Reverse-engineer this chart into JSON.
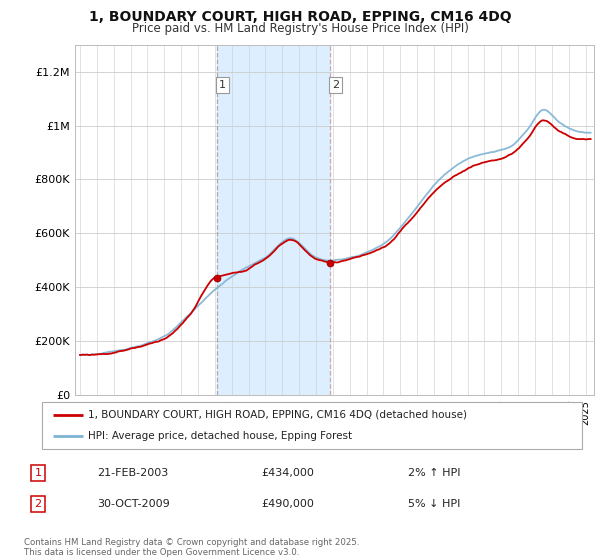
{
  "title": "1, BOUNDARY COURT, HIGH ROAD, EPPING, CM16 4DQ",
  "subtitle": "Price paid vs. HM Land Registry's House Price Index (HPI)",
  "legend_line1": "1, BOUNDARY COURT, HIGH ROAD, EPPING, CM16 4DQ (detached house)",
  "legend_line2": "HPI: Average price, detached house, Epping Forest",
  "transaction1_label": "1",
  "transaction1_date": "21-FEB-2003",
  "transaction1_price": "£434,000",
  "transaction1_hpi": "2% ↑ HPI",
  "transaction2_label": "2",
  "transaction2_date": "30-OCT-2009",
  "transaction2_price": "£490,000",
  "transaction2_hpi": "5% ↓ HPI",
  "footer": "Contains HM Land Registry data © Crown copyright and database right 2025.\nThis data is licensed under the Open Government Licence v3.0.",
  "line_color_red": "#cc0000",
  "line_color_blue": "#7fb3d3",
  "shade_color": "#ddeeff",
  "background_color": "#ffffff",
  "grid_color": "#cccccc",
  "yticks": [
    0,
    200000,
    400000,
    600000,
    800000,
    1000000,
    1200000
  ],
  "ytick_labels": [
    "£0",
    "£200K",
    "£400K",
    "£600K",
    "£800K",
    "£1M",
    "£1.2M"
  ],
  "ylim": [
    0,
    1300000
  ],
  "xlim_start": 1994.7,
  "xlim_end": 2025.5,
  "transaction1_x": 2003.13,
  "transaction1_y": 434000,
  "transaction2_x": 2009.83,
  "transaction2_y": 490000
}
